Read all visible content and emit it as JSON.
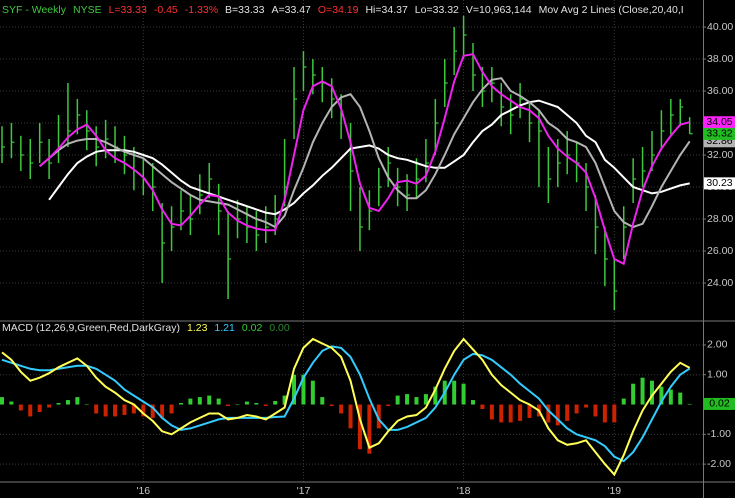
{
  "chart_data": [
    {
      "type": "ohlc",
      "header": [
        {
          "text": "SYF - Weekly",
          "color": "#3ec83e"
        },
        {
          "text": "NYSE",
          "color": "#3ec83e"
        },
        {
          "text": "L=33.33",
          "color": "#ff3030"
        },
        {
          "text": "-0.45",
          "color": "#ff3030"
        },
        {
          "text": "-1.33%",
          "color": "#ff3030"
        },
        {
          "text": "B=33.33",
          "color": "#e0e0e0"
        },
        {
          "text": "A=33.47",
          "color": "#e0e0e0"
        },
        {
          "text": "O=34.19",
          "color": "#ff3030"
        },
        {
          "text": "Hi=34.37",
          "color": "#e0e0e0"
        },
        {
          "text": "Lo=33.32",
          "color": "#e0e0e0"
        },
        {
          "text": "V=10,963,144",
          "color": "#e0e0e0"
        },
        {
          "text": "Mov Avg 2 Lines (Close,20,40,I",
          "color": "#e0e0e0"
        }
      ],
      "categories": [
        null,
        null,
        null,
        null,
        null,
        null,
        null,
        null,
        null,
        null,
        null,
        null,
        null,
        null,
        null,
        "'16",
        null,
        null,
        null,
        null,
        null,
        null,
        null,
        null,
        null,
        null,
        null,
        null,
        null,
        null,
        null,
        null,
        "'17",
        null,
        null,
        null,
        null,
        null,
        null,
        null,
        null,
        null,
        null,
        null,
        null,
        null,
        null,
        null,
        null,
        "'18",
        null,
        null,
        null,
        null,
        null,
        null,
        null,
        null,
        null,
        null,
        null,
        null,
        null,
        null,
        null,
        "'19",
        null,
        null,
        null,
        null,
        null,
        null,
        null,
        null
      ],
      "high": [
        33.8,
        34.0,
        33.2,
        33.0,
        34.0,
        33.0,
        34.5,
        36.5,
        35.5,
        34.8,
        33.8,
        34.2,
        33.8,
        33.2,
        32.5,
        31.8,
        31.5,
        29.0,
        28.8,
        29.8,
        29.5,
        30.8,
        31.5,
        30.2,
        28.5,
        29.2,
        28.8,
        28.5,
        28.8,
        29.5,
        33.0,
        37.5,
        38.5,
        38.0,
        37.5,
        36.8,
        35.8,
        34.0,
        30.0,
        29.8,
        31.2,
        32.5,
        31.2,
        30.8,
        31.8,
        33.0,
        35.5,
        38.0,
        40.0,
        40.7,
        39.0,
        37.5,
        37.5,
        36.5,
        35.8,
        36.5,
        35.2,
        34.8,
        32.5,
        33.0,
        33.5,
        32.8,
        31.5,
        29.5,
        27.5,
        25.5,
        28.8,
        31.8,
        32.5,
        33.5,
        34.8,
        35.5,
        35.5,
        34.37
      ],
      "low": [
        31.5,
        31.8,
        31.0,
        30.5,
        31.5,
        30.5,
        31.5,
        32.5,
        33.3,
        32.3,
        31.3,
        31.8,
        31.5,
        30.8,
        29.8,
        29.5,
        28.5,
        24.0,
        26.0,
        27.3,
        27.0,
        28.3,
        29.3,
        27.0,
        23.0,
        26.8,
        26.5,
        26.0,
        26.5,
        27.0,
        28.8,
        33.0,
        36.0,
        35.8,
        35.3,
        34.3,
        33.0,
        28.5,
        26.0,
        27.3,
        28.8,
        30.0,
        28.8,
        28.5,
        29.3,
        30.3,
        32.0,
        35.0,
        37.0,
        38.0,
        36.0,
        35.0,
        35.3,
        33.8,
        33.3,
        34.3,
        32.8,
        30.0,
        29.0,
        30.0,
        30.8,
        30.3,
        28.5,
        25.8,
        23.8,
        22.3,
        25.5,
        29.0,
        30.0,
        31.0,
        32.3,
        33.3,
        33.8,
        33.32
      ],
      "close": [
        32.5,
        32.8,
        32.0,
        31.5,
        32.8,
        31.5,
        32.5,
        33.5,
        34.5,
        33.5,
        32.5,
        33.0,
        32.5,
        32.0,
        31.0,
        30.5,
        30.0,
        26.5,
        27.5,
        28.5,
        28.0,
        29.5,
        30.5,
        28.5,
        25.5,
        28.0,
        27.5,
        27.0,
        27.5,
        28.0,
        30.0,
        35.5,
        37.5,
        37.0,
        36.5,
        35.5,
        34.5,
        31.0,
        27.5,
        28.5,
        30.0,
        31.5,
        30.0,
        29.5,
        30.5,
        31.5,
        34.0,
        36.5,
        38.5,
        39.5,
        37.0,
        36.0,
        36.5,
        35.0,
        34.5,
        35.5,
        34.0,
        33.5,
        30.5,
        31.5,
        32.0,
        31.5,
        30.0,
        27.5,
        25.5,
        23.5,
        27.5,
        30.5,
        31.0,
        32.0,
        33.5,
        34.5,
        35.0,
        33.33
      ],
      "color": "#3ec83e",
      "series": [
        {
          "color": "#ffffff",
          "values": [
            null,
            null,
            null,
            null,
            null,
            29.2,
            30.0,
            30.8,
            31.5,
            31.9,
            32.2,
            32.3,
            32.3,
            32.3,
            32.2,
            32.0,
            31.8,
            31.4,
            30.9,
            30.4,
            30.0,
            29.8,
            29.6,
            29.4,
            29.2,
            29.0,
            28.8,
            28.6,
            28.4,
            28.3,
            28.6,
            29.0,
            29.6,
            30.1,
            30.7,
            31.2,
            31.8,
            32.4,
            32.5,
            32.6,
            32.4,
            32.0,
            31.8,
            31.7,
            31.5,
            31.3,
            31.2,
            31.2,
            31.6,
            32.0,
            32.8,
            33.5,
            33.9,
            34.5,
            34.8,
            35.1,
            35.3,
            35.4,
            35.2,
            35.0,
            34.5,
            34.0,
            33.2,
            32.8,
            31.7,
            31.2,
            30.6,
            30.0,
            29.8,
            29.6,
            29.7,
            29.9,
            30.1,
            30.23
          ]
        },
        {
          "color": "#b4b4b4",
          "values": [
            null,
            null,
            null,
            null,
            31.3,
            31.8,
            32.3,
            32.7,
            32.9,
            33.0,
            33.0,
            32.8,
            32.5,
            32.2,
            32.0,
            31.8,
            31.3,
            30.8,
            30.3,
            29.9,
            29.5,
            29.2,
            29.1,
            29.0,
            28.9,
            28.6,
            28.3,
            28.0,
            27.8,
            27.5,
            28.2,
            29.8,
            31.2,
            32.8,
            34.0,
            35.0,
            35.6,
            35.8,
            35.0,
            33.5,
            31.8,
            30.6,
            29.8,
            29.3,
            29.3,
            29.8,
            30.8,
            32.0,
            33.3,
            34.3,
            35.3,
            36.1,
            36.7,
            36.8,
            36.0,
            35.7,
            35.3,
            34.8,
            34.0,
            33.6,
            33.0,
            32.8,
            32.5,
            31.5,
            30.0,
            28.5,
            27.8,
            27.5,
            27.7,
            28.8,
            30.0,
            31.0,
            32.0,
            32.86
          ]
        },
        {
          "color": "#ee22ee",
          "values": [
            null,
            null,
            null,
            null,
            31.3,
            31.8,
            32.4,
            33.1,
            33.6,
            33.9,
            33.2,
            32.3,
            31.8,
            31.5,
            31.1,
            30.6,
            29.8,
            28.6,
            27.7,
            27.6,
            28.2,
            28.9,
            29.5,
            29.4,
            28.4,
            27.9,
            27.6,
            27.4,
            27.3,
            27.3,
            29.2,
            32.0,
            34.8,
            36.3,
            36.6,
            36.3,
            34.9,
            32.8,
            30.2,
            28.7,
            28.5,
            29.3,
            30.3,
            30.4,
            30.2,
            30.7,
            32.2,
            34.3,
            36.6,
            38.2,
            38.3,
            37.2,
            36.3,
            35.8,
            35.4,
            35.0,
            34.8,
            34.3,
            33.2,
            32.4,
            31.9,
            31.5,
            30.9,
            29.3,
            27.3,
            25.5,
            25.2,
            27.7,
            29.8,
            31.3,
            32.4,
            33.2,
            33.9,
            34.05
          ]
        }
      ],
      "ylim": [
        21.69,
        41.69
      ],
      "yticks": [
        {
          "value": 24,
          "label": "24.00"
        },
        {
          "value": 26,
          "label": "26.00"
        },
        {
          "value": 28,
          "label": "28.00"
        },
        {
          "value": 30,
          "label": "30.00"
        },
        {
          "value": 32,
          "label": "32.00"
        },
        {
          "value": 34,
          "label": "34.00"
        },
        {
          "value": 36,
          "label": "36.00"
        },
        {
          "value": 38,
          "label": "38.00"
        },
        {
          "value": 40,
          "label": "40.00"
        }
      ],
      "tags": [
        {
          "value": 34.05,
          "color": "#ff22ff"
        },
        {
          "value": 32.86,
          "color": "#b4b4b4"
        },
        {
          "value": 33.32,
          "color": "#22bb22"
        },
        {
          "value": 30.23,
          "color": "#ffffff"
        }
      ],
      "grid": true
    },
    {
      "type": "macd",
      "header": [
        {
          "text": "MACD (12,26,9,Green,Red,DarkGray)",
          "color": "#e0e0e0"
        },
        {
          "text": "1.23",
          "color": "#ffff55"
        },
        {
          "text": "1.21",
          "color": "#33ccff"
        },
        {
          "text": "0.02",
          "color": "#33cc33"
        },
        {
          "text": "0.00",
          "color": "#2a8a2a"
        }
      ],
      "histogram": [
        0.25,
        0.1,
        -0.2,
        -0.4,
        -0.25,
        -0.1,
        0.05,
        0.15,
        0.25,
        0.0,
        -0.3,
        -0.4,
        -0.4,
        -0.35,
        -0.3,
        -0.4,
        -0.45,
        -0.45,
        -0.3,
        0.05,
        0.2,
        0.25,
        0.3,
        0.2,
        -0.05,
        0.0,
        0.1,
        0.05,
        -0.05,
        0.12,
        0.3,
        1.0,
        1.0,
        0.8,
        0.25,
        -0.05,
        -0.3,
        -0.8,
        -1.5,
        -1.65,
        -0.8,
        -0.05,
        0.3,
        0.35,
        0.25,
        0.35,
        0.6,
        0.8,
        0.8,
        0.7,
        0.15,
        -0.15,
        -0.5,
        -0.6,
        -0.6,
        -0.55,
        -0.45,
        -0.4,
        -0.6,
        -0.7,
        -0.55,
        -0.3,
        -0.1,
        -0.4,
        -0.6,
        -0.6,
        0.2,
        0.7,
        0.9,
        0.8,
        0.6,
        0.5,
        0.4,
        0.02
      ],
      "histogram_colors": [
        "#33cc33",
        "#cc2200"
      ],
      "series": [
        {
          "color": "#33ccff",
          "values": [
            1.5,
            1.4,
            1.3,
            1.2,
            1.15,
            1.15,
            1.2,
            1.25,
            1.3,
            1.3,
            1.2,
            1.0,
            0.8,
            0.5,
            0.3,
            0.1,
            -0.1,
            -0.45,
            -0.7,
            -0.85,
            -0.8,
            -0.7,
            -0.6,
            -0.5,
            -0.45,
            -0.45,
            -0.45,
            -0.45,
            -0.45,
            -0.42,
            -0.4,
            0.2,
            0.9,
            1.4,
            1.8,
            1.95,
            1.9,
            1.6,
            1.0,
            0.2,
            -0.5,
            -0.85,
            -0.85,
            -0.75,
            -0.6,
            -0.45,
            -0.1,
            0.4,
            1.0,
            1.5,
            1.7,
            1.65,
            1.5,
            1.25,
            1.0,
            0.7,
            0.45,
            0.2,
            -0.2,
            -0.5,
            -0.8,
            -1.0,
            -1.1,
            -1.2,
            -1.4,
            -1.75,
            -1.9,
            -1.6,
            -1.1,
            -0.5,
            0.1,
            0.6,
            1.0,
            1.21
          ]
        },
        {
          "color": "#ffff55",
          "values": [
            1.75,
            1.5,
            1.1,
            0.8,
            0.9,
            1.05,
            1.25,
            1.4,
            1.55,
            1.3,
            0.9,
            0.6,
            0.4,
            0.15,
            0.0,
            -0.3,
            -0.55,
            -0.9,
            -1.0,
            -0.8,
            -0.6,
            -0.45,
            -0.3,
            -0.3,
            -0.5,
            -0.45,
            -0.35,
            -0.4,
            -0.5,
            -0.3,
            -0.1,
            1.2,
            1.9,
            2.2,
            2.05,
            1.9,
            1.6,
            0.8,
            -0.5,
            -1.45,
            -1.3,
            -0.9,
            -0.55,
            -0.4,
            -0.35,
            -0.1,
            0.5,
            1.2,
            1.8,
            2.2,
            1.85,
            1.5,
            1.0,
            0.65,
            0.4,
            0.15,
            0.0,
            -0.2,
            -0.8,
            -1.2,
            -1.35,
            -1.3,
            -1.2,
            -1.6,
            -2.0,
            -2.35,
            -1.7,
            -0.9,
            -0.2,
            0.3,
            0.7,
            1.1,
            1.4,
            1.23
          ]
        }
      ],
      "ylim": [
        -2.6,
        2.77
      ],
      "yticks": [
        {
          "value": -2,
          "label": "-2.00"
        },
        {
          "value": -1,
          "label": "-1.00"
        },
        {
          "value": 1,
          "label": "1.00"
        },
        {
          "value": 2,
          "label": "2.00"
        }
      ],
      "tags": [
        {
          "value": 0.02,
          "color": "#22bb22"
        }
      ],
      "grid": true
    }
  ]
}
